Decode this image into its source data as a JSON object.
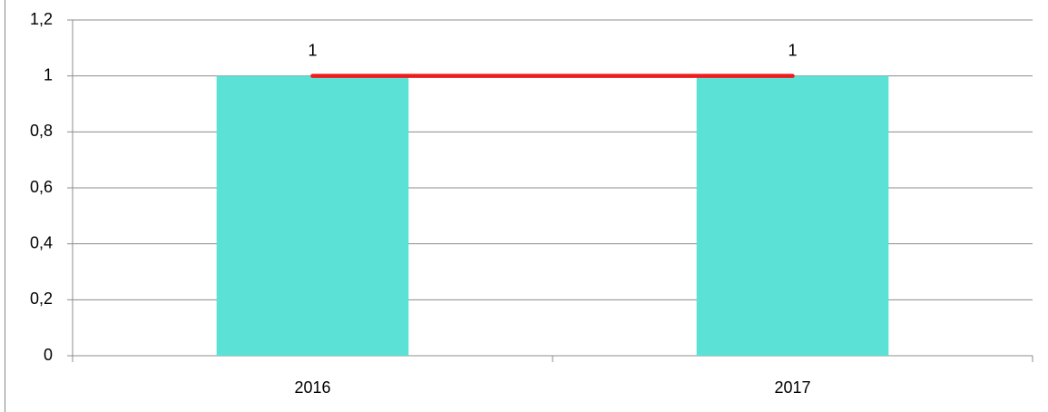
{
  "chart_data": {
    "type": "bar",
    "categories": [
      "2016",
      "2017"
    ],
    "series": [
      {
        "type": "bar",
        "color": "#5ce1d6",
        "values": [
          1,
          1
        ]
      },
      {
        "type": "line",
        "color": "#ee1c1c",
        "values": [
          1,
          1
        ]
      }
    ],
    "ylim": [
      0,
      1.2
    ],
    "yticks": [
      0,
      {
        "value": 0.2,
        "label": "0,2"
      },
      {
        "value": 0.4,
        "label": "0,4"
      },
      {
        "value": 0.6,
        "label": "0,6"
      },
      {
        "value": 0.8,
        "label": "0,8"
      },
      1,
      {
        "value": 1.2,
        "label": "1,2"
      }
    ],
    "grid": true
  }
}
